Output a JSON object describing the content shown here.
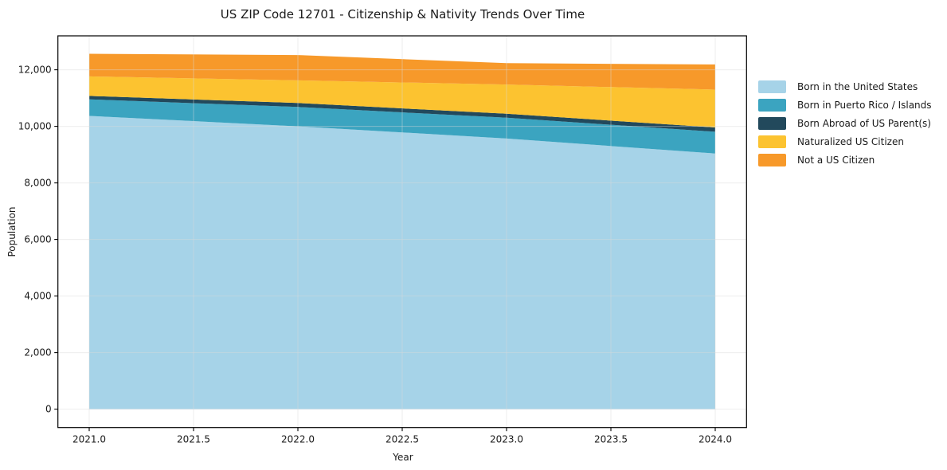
{
  "title": "US ZIP Code 12701 - Citizenship & Nativity Trends Over Time",
  "chart_data": {
    "type": "area",
    "stacked": true,
    "title": "US ZIP Code 12701 - Citizenship & Nativity Trends Over Time",
    "xlabel": "Year",
    "ylabel": "Population",
    "x": [
      2021,
      2022,
      2023,
      2024
    ],
    "series": [
      {
        "name": "Born in the United States",
        "color": "#a6d3e8",
        "values": [
          10370,
          10000,
          9570,
          9040
        ]
      },
      {
        "name": "Born in Puerto Rico / Islands",
        "color": "#3ba4c0",
        "values": [
          585,
          685,
          735,
          770
        ]
      },
      {
        "name": "Born Abroad of US Parent(s)",
        "color": "#22495c",
        "values": [
          120,
          140,
          140,
          150
        ]
      },
      {
        "name": "Naturalized US Citizen",
        "color": "#fcc330",
        "values": [
          690,
          800,
          1035,
          1340
        ]
      },
      {
        "name": "Not a US Citizen",
        "color": "#f7992a",
        "values": [
          800,
          895,
          755,
          890
        ]
      }
    ],
    "stack_totals": [
      12565,
      12520,
      12235,
      12190
    ],
    "xticks": {
      "values": [
        2021.0,
        2021.5,
        2022.0,
        2022.5,
        2023.0,
        2023.5,
        2024.0
      ],
      "labels": [
        "2021.0",
        "2021.5",
        "2022.0",
        "2022.5",
        "2023.0",
        "2023.5",
        "2024.0"
      ]
    },
    "yticks": {
      "values": [
        0,
        2000,
        4000,
        6000,
        8000,
        10000,
        12000
      ],
      "labels": [
        "0",
        "2,000",
        "4,000",
        "6,000",
        "8,000",
        "10,000",
        "12,000"
      ]
    },
    "xlim": [
      2020.85,
      2024.15
    ],
    "ylim": [
      -650,
      13200
    ],
    "grid": true,
    "legend_position": "right",
    "colors": {
      "grid": "#d9d9d9",
      "spine": "#000000",
      "tick": "#000000",
      "text": "#1a1a1a",
      "background": "#ffffff"
    }
  }
}
